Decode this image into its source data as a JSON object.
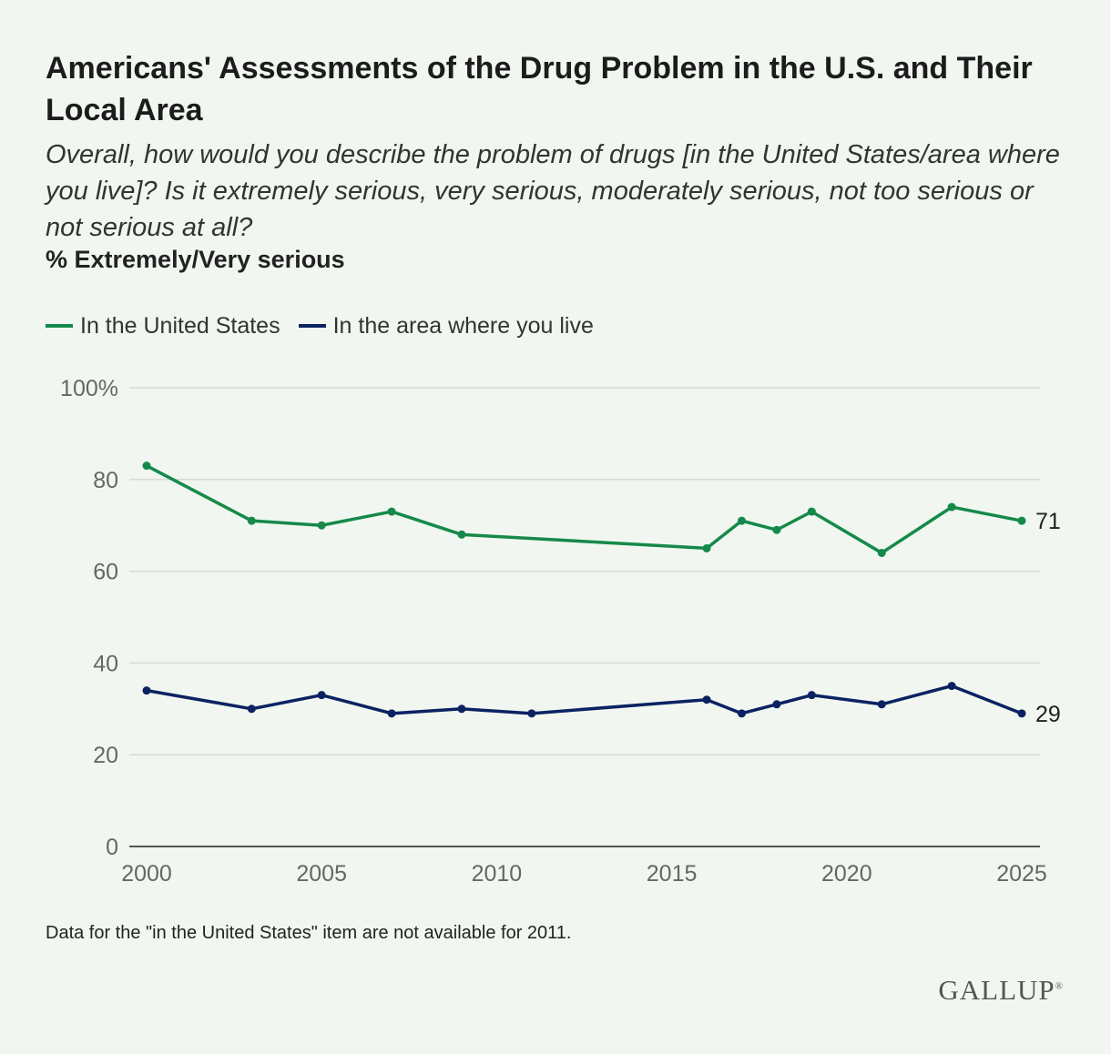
{
  "title": "Americans' Assessments of the Drug Problem in the U.S. and Their Local Area",
  "subtitle": "Overall, how would you describe the problem of drugs [in the United States/area where you live]? Is it extremely serious, very serious, moderately serious, not too serious or not serious at all?",
  "measure": "% Extremely/Very serious",
  "note": "Data for the \"in the United States\" item are not available for 2011.",
  "brand": "GALLUP",
  "colors": {
    "us": "#15894b",
    "local": "#0b2262",
    "grid": "#d6dcd5",
    "axis": "#555555",
    "tick_text": "#666666"
  },
  "chart_data": {
    "type": "line",
    "xlim": [
      2000,
      2025
    ],
    "ylim": [
      0,
      100
    ],
    "x_ticks": [
      2000,
      2005,
      2010,
      2015,
      2020,
      2025
    ],
    "x_tick_labels": [
      "2000",
      "2005",
      "2010",
      "2015",
      "2020",
      "2025"
    ],
    "y_ticks": [
      0,
      20,
      40,
      60,
      80,
      100
    ],
    "y_tick_labels": [
      "0",
      "20",
      "40",
      "60",
      "80",
      "100%"
    ],
    "grid": true,
    "legend_position": "top-left",
    "series": [
      {
        "name": "In the United States",
        "color_key": "us",
        "x": [
          2000,
          2003,
          2005,
          2007,
          2009,
          2016,
          2017,
          2018,
          2019,
          2021,
          2023,
          2025
        ],
        "values": [
          83,
          71,
          70,
          73,
          68,
          65,
          71,
          69,
          73,
          64,
          74,
          71
        ],
        "end_label": "71"
      },
      {
        "name": "In the area where you live",
        "color_key": "local",
        "x": [
          2000,
          2003,
          2005,
          2007,
          2009,
          2011,
          2016,
          2017,
          2018,
          2019,
          2021,
          2023,
          2025
        ],
        "values": [
          34,
          30,
          33,
          29,
          30,
          29,
          32,
          29,
          31,
          33,
          31,
          35,
          29
        ],
        "end_label": "29"
      }
    ]
  }
}
